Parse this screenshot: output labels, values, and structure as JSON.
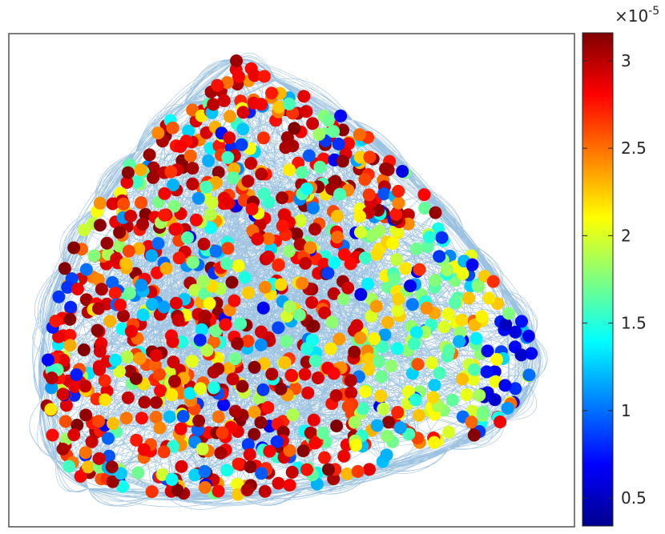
{
  "chart_data": {
    "type": "scatter",
    "title": "",
    "xlabel": "",
    "ylabel": "",
    "grid": false,
    "description_of_marks": "force-directed network graph: nodes colored by a scalar value, edges drawn as thin curved lines",
    "edge_color": "#4a90c8",
    "colormap": "jet",
    "colorbar": {
      "location": "right",
      "min": 0.34,
      "max": 3.16,
      "ticks": [
        0.5,
        1,
        1.5,
        2,
        2.5,
        3
      ],
      "tick_labels": [
        "0.5",
        "1",
        "1.5",
        "2",
        "2.5",
        "3"
      ],
      "exponent_base": "×10",
      "exponent_power": "-5"
    },
    "node_value_range": [
      0.34,
      3.16
    ],
    "node_value_units": "×10^-5"
  }
}
